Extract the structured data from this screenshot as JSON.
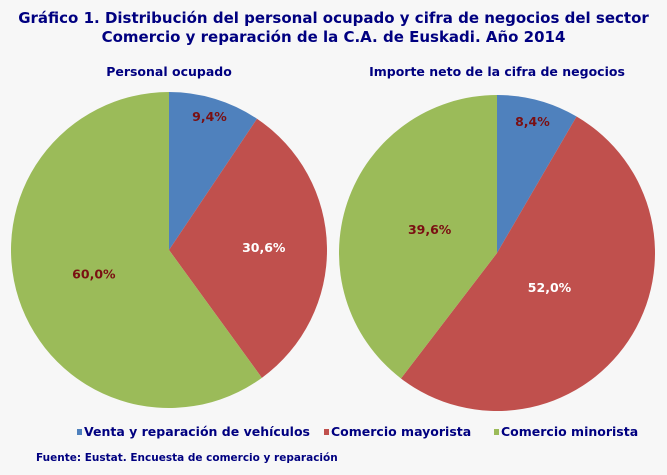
{
  "title_line1": "Gráfico 1. Distribución del personal ocupado y cifra de negocios del sector",
  "title_line2": "Comercio y reparación de la C.A. de Euskadi. Año 2014",
  "source": "Fuente: Eustat. Encuesta de comercio y reparación",
  "colors": {
    "text": "#000080",
    "label_dark": "#7a0f12",
    "label_light": "#ffffff"
  },
  "chart_data": [
    {
      "type": "pie",
      "title": "Personal ocupado",
      "categories": [
        "Venta y reparación de vehículos",
        "Comercio mayorista",
        "Comercio minorista"
      ],
      "values": [
        9.4,
        30.6,
        60.0
      ],
      "labels": [
        "9,4%",
        "30,6%",
        "60,0%"
      ],
      "colors": [
        "#4f81bd",
        "#c0504d",
        "#9bbb59"
      ],
      "legend": "bottom"
    },
    {
      "type": "pie",
      "title": "Importe neto de la cifra de negocios",
      "categories": [
        "Venta y reparación de vehículos",
        "Comercio mayorista",
        "Comercio minorista"
      ],
      "values": [
        8.4,
        52.0,
        39.6
      ],
      "labels": [
        "8,4%",
        "52,0%",
        "39,6%"
      ],
      "colors": [
        "#4f81bd",
        "#c0504d",
        "#9bbb59"
      ],
      "legend": "bottom"
    }
  ],
  "legend": [
    {
      "label": "Venta y reparación de vehículos",
      "color": "#4f81bd"
    },
    {
      "label": "Comercio mayorista",
      "color": "#c0504d"
    },
    {
      "label": "Comercio minorista",
      "color": "#9bbb59"
    }
  ]
}
